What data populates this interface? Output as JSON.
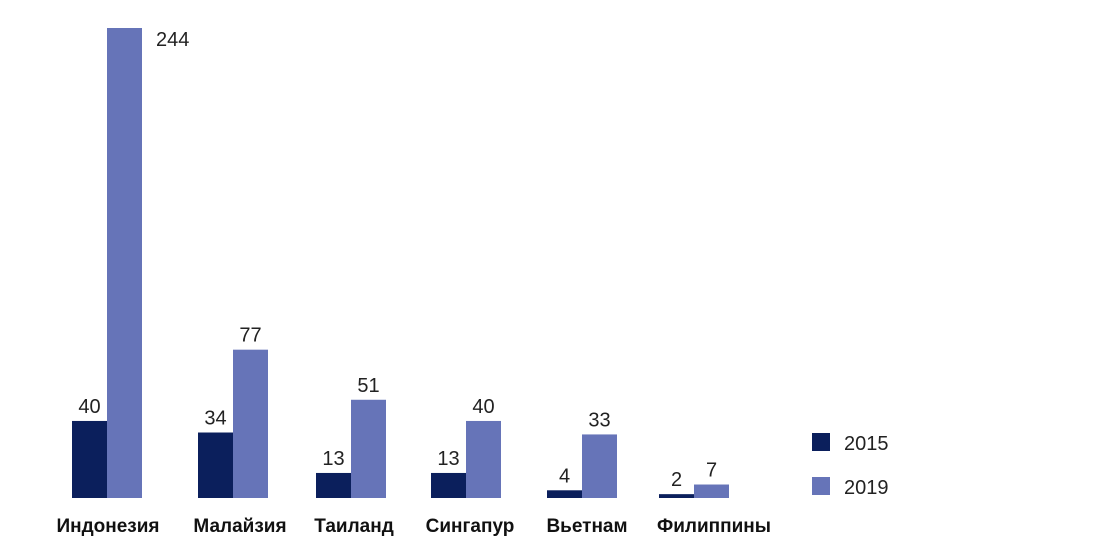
{
  "chart_data": {
    "type": "bar",
    "title": "",
    "xlabel": "",
    "ylabel": "",
    "categories": [
      "Индонезия",
      "Малайзия",
      "Таиланд",
      "Сингапур",
      "Вьетнам",
      "Филиппины"
    ],
    "series": [
      {
        "name": "2015",
        "color": "#0b1f5c",
        "values": [
          40,
          34,
          13,
          13,
          4,
          2
        ]
      },
      {
        "name": "2019",
        "color": "#6674b8",
        "values": [
          244,
          77,
          51,
          40,
          33,
          7
        ]
      }
    ],
    "ylim": [
      0,
      244
    ],
    "grid": false,
    "legend_position": "bottom-right",
    "data_labels": true
  }
}
